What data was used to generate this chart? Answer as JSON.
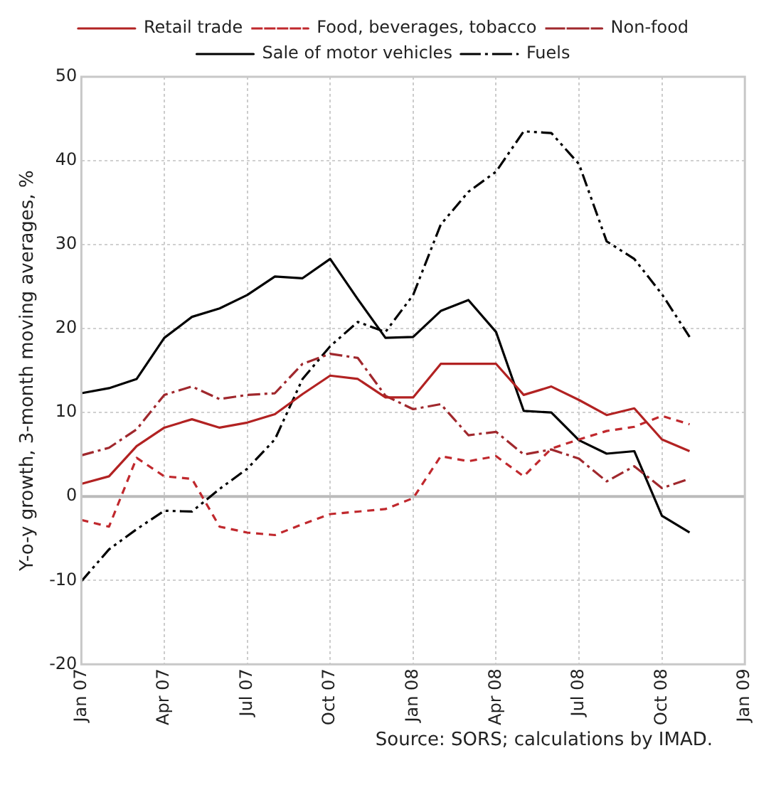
{
  "chart_data": {
    "type": "line",
    "ylabel": "Y-o-y growth, 3-month moving averages, %",
    "annotations": [
      "Source: SORS; calculations by IMAD."
    ],
    "categories": [
      "Jan 07",
      null,
      null,
      "Apr 07",
      null,
      null,
      "Jul 07",
      null,
      null,
      "Oct 07",
      null,
      null,
      "Jan 08",
      null,
      null,
      "Apr 08",
      null,
      null,
      "Jul 08",
      null,
      null,
      "Oct 08",
      null,
      null,
      "Jan 09"
    ],
    "ylim": [
      -20,
      50
    ],
    "yticks": [
      -20,
      -10,
      0,
      10,
      20,
      30,
      40,
      50
    ],
    "grid": true,
    "ref_lines": [
      {
        "axis": "y",
        "value": 0,
        "color": "#bbbbbb",
        "line_style": "solid"
      }
    ],
    "legend": "top",
    "marker": "none",
    "series": [
      {
        "name": "Retail trade",
        "color": "#b22222",
        "line_style": "solid",
        "values": [
          1.5,
          2.4,
          6,
          8.2,
          9.2,
          8.2,
          8.8,
          9.8,
          12.2,
          14.4,
          14,
          11.8,
          11.8,
          15.8,
          15.8,
          15.8,
          12.1,
          13.1,
          11.5,
          9.7,
          10.5,
          6.8,
          5.4,
          null,
          null
        ]
      },
      {
        "name": "Food, beverages, tobacco",
        "color": "#c0282d",
        "line_style": "dashed",
        "values": [
          -2.8,
          -3.6,
          4.6,
          2.4,
          2.1,
          -3.6,
          -4.3,
          -4.6,
          -3.3,
          -2.1,
          -1.8,
          -1.5,
          -0.2,
          4.8,
          4.2,
          4.8,
          2.4,
          5.7,
          6.8,
          7.8,
          8.3,
          9.6,
          8.6,
          null,
          null
        ]
      },
      {
        "name": "Non-food",
        "color": "#a0282d",
        "line_style": "dashdot",
        "values": [
          4.9,
          5.8,
          8,
          12.1,
          13.1,
          11.6,
          12.1,
          12.3,
          15.8,
          17,
          16.5,
          12,
          10.4,
          11,
          7.3,
          7.7,
          5,
          5.6,
          4.5,
          1.8,
          3.6,
          1,
          2.1,
          null,
          null
        ]
      },
      {
        "name": "Sale of motor vehicles",
        "color": "#000000",
        "line_style": "solid",
        "values": [
          12.3,
          12.9,
          14,
          18.9,
          21.4,
          22.4,
          24,
          26.2,
          26,
          28.3,
          23.5,
          18.9,
          19,
          22.1,
          23.4,
          19.6,
          10.2,
          10,
          6.7,
          5.1,
          5.4,
          -2.3,
          -4.3,
          null,
          null
        ]
      },
      {
        "name": "Fuels",
        "color": "#000000",
        "line_style": "dashdotdot",
        "values": [
          -10.1,
          -6.3,
          -3.9,
          -1.7,
          -1.8,
          0.9,
          3.3,
          6.8,
          14,
          17.9,
          20.8,
          19.6,
          24,
          32.4,
          36.3,
          38.7,
          43.5,
          43.3,
          39.6,
          30.4,
          28.3,
          24.1,
          19,
          null,
          null
        ]
      }
    ]
  }
}
